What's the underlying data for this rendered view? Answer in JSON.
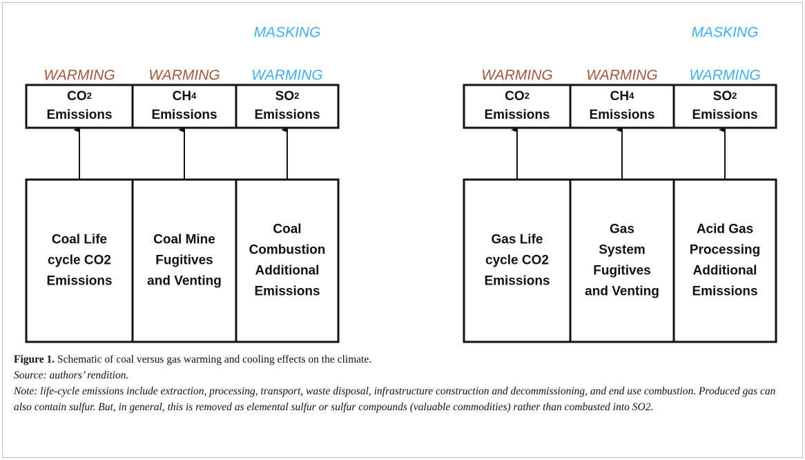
{
  "panels": [
    {
      "columns": [
        {
          "effects": [
            {
              "text": "WARMING",
              "color": "#9c5a3a"
            }
          ],
          "top": {
            "formula": "CO",
            "sub": "2",
            "label": "Emissions"
          },
          "bottom": [
            "Coal Life",
            "cycle CO2",
            "Emissions"
          ]
        },
        {
          "effects": [
            {
              "text": "WARMING",
              "color": "#9c5a3a"
            }
          ],
          "top": {
            "formula": "CH",
            "sub": "4",
            "label": "Emissions"
          },
          "bottom": [
            "Coal Mine",
            "Fugitives",
            "and Venting"
          ]
        },
        {
          "effects": [
            {
              "text": "MASKING",
              "color": "#3fb0e8"
            },
            {
              "text": "WARMING",
              "color": "#3fb0e8"
            }
          ],
          "top": {
            "formula": "SO",
            "sub": "2",
            "label": "Emissions"
          },
          "bottom": [
            "Coal",
            "Combustion",
            "Additional",
            "Emissions"
          ]
        }
      ]
    },
    {
      "columns": [
        {
          "effects": [
            {
              "text": "WARMING",
              "color": "#9c5a3a"
            }
          ],
          "top": {
            "formula": "CO",
            "sub": "2",
            "label": "Emissions"
          },
          "bottom": [
            "Gas Life",
            "cycle CO2",
            "Emissions"
          ]
        },
        {
          "effects": [
            {
              "text": "WARMING",
              "color": "#9c5a3a"
            }
          ],
          "top": {
            "formula": "CH",
            "sub": "4",
            "label": "Emissions"
          },
          "bottom": [
            "Gas",
            "System",
            "Fugitives",
            "and Venting"
          ]
        },
        {
          "effects": [
            {
              "text": "MASKING",
              "color": "#3fb0e8"
            },
            {
              "text": "WARMING",
              "color": "#3fb0e8"
            }
          ],
          "top": {
            "formula": "SO",
            "sub": "2",
            "label": "Emissions"
          },
          "bottom": [
            "Acid Gas",
            "Processing",
            "Additional",
            "Emissions"
          ]
        }
      ]
    }
  ],
  "caption": {
    "figure_label": "Figure 1.",
    "figure_text": "Schematic of coal versus gas warming and cooling effects on the climate.",
    "source": "Source: authors’ rendition.",
    "note": "Note: life-cycle emissions include extraction, processing, transport, waste disposal, infrastructure construction and decommissioning, and end use combustion. Produced gas can also contain sulfur. But, in general, this is removed as elemental sulfur or sulfur compounds (valuable commodities) rather than combusted into SO2."
  }
}
